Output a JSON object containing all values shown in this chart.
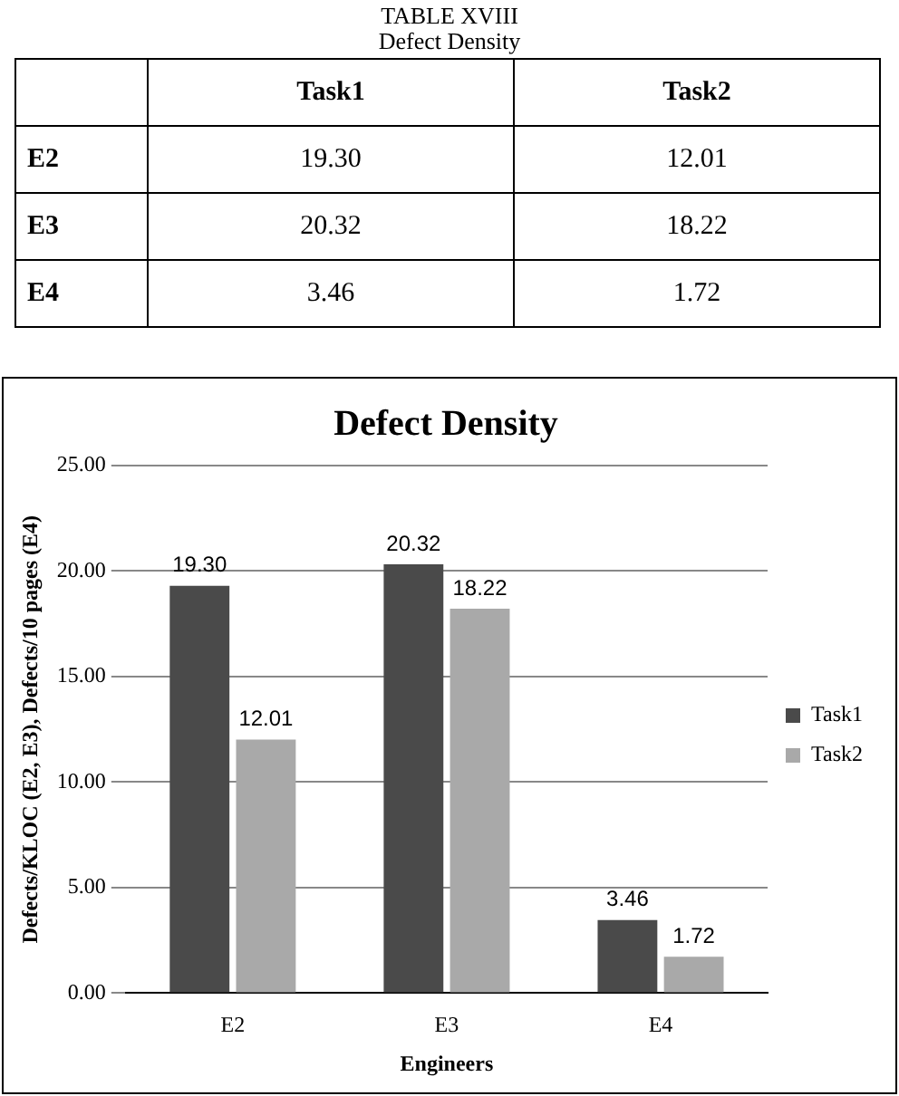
{
  "chart_data": {
    "type": "bar",
    "title": "Defect Density",
    "xlabel": "Engineers",
    "ylabel": "Defects/KLOC (E2, E3), Defects/10 pages (E4)",
    "annotations": [
      "TABLE XVIII",
      "Defect Density"
    ],
    "categories": [
      "E2",
      "E3",
      "E4"
    ],
    "series": [
      {
        "name": "Task1",
        "color": "#4a4a4a",
        "values": [
          19.3,
          20.32,
          3.46
        ],
        "value_labels": [
          "19.30",
          "20.32",
          "3.46"
        ]
      },
      {
        "name": "Task2",
        "color": "#a9a9a9",
        "values": [
          12.01,
          18.22,
          1.72
        ],
        "value_labels": [
          "12.01",
          "18.22",
          "1.72"
        ]
      }
    ],
    "ylim": [
      0,
      25
    ],
    "yticks": [
      {
        "value": 0,
        "label": "0.00"
      },
      {
        "value": 5,
        "label": "5.00"
      },
      {
        "value": 10,
        "label": "10.00"
      },
      {
        "value": 15,
        "label": "15.00"
      },
      {
        "value": 20,
        "label": "20.00"
      },
      {
        "value": 25,
        "label": "25.00"
      }
    ],
    "grid": "y",
    "legend": "right"
  }
}
